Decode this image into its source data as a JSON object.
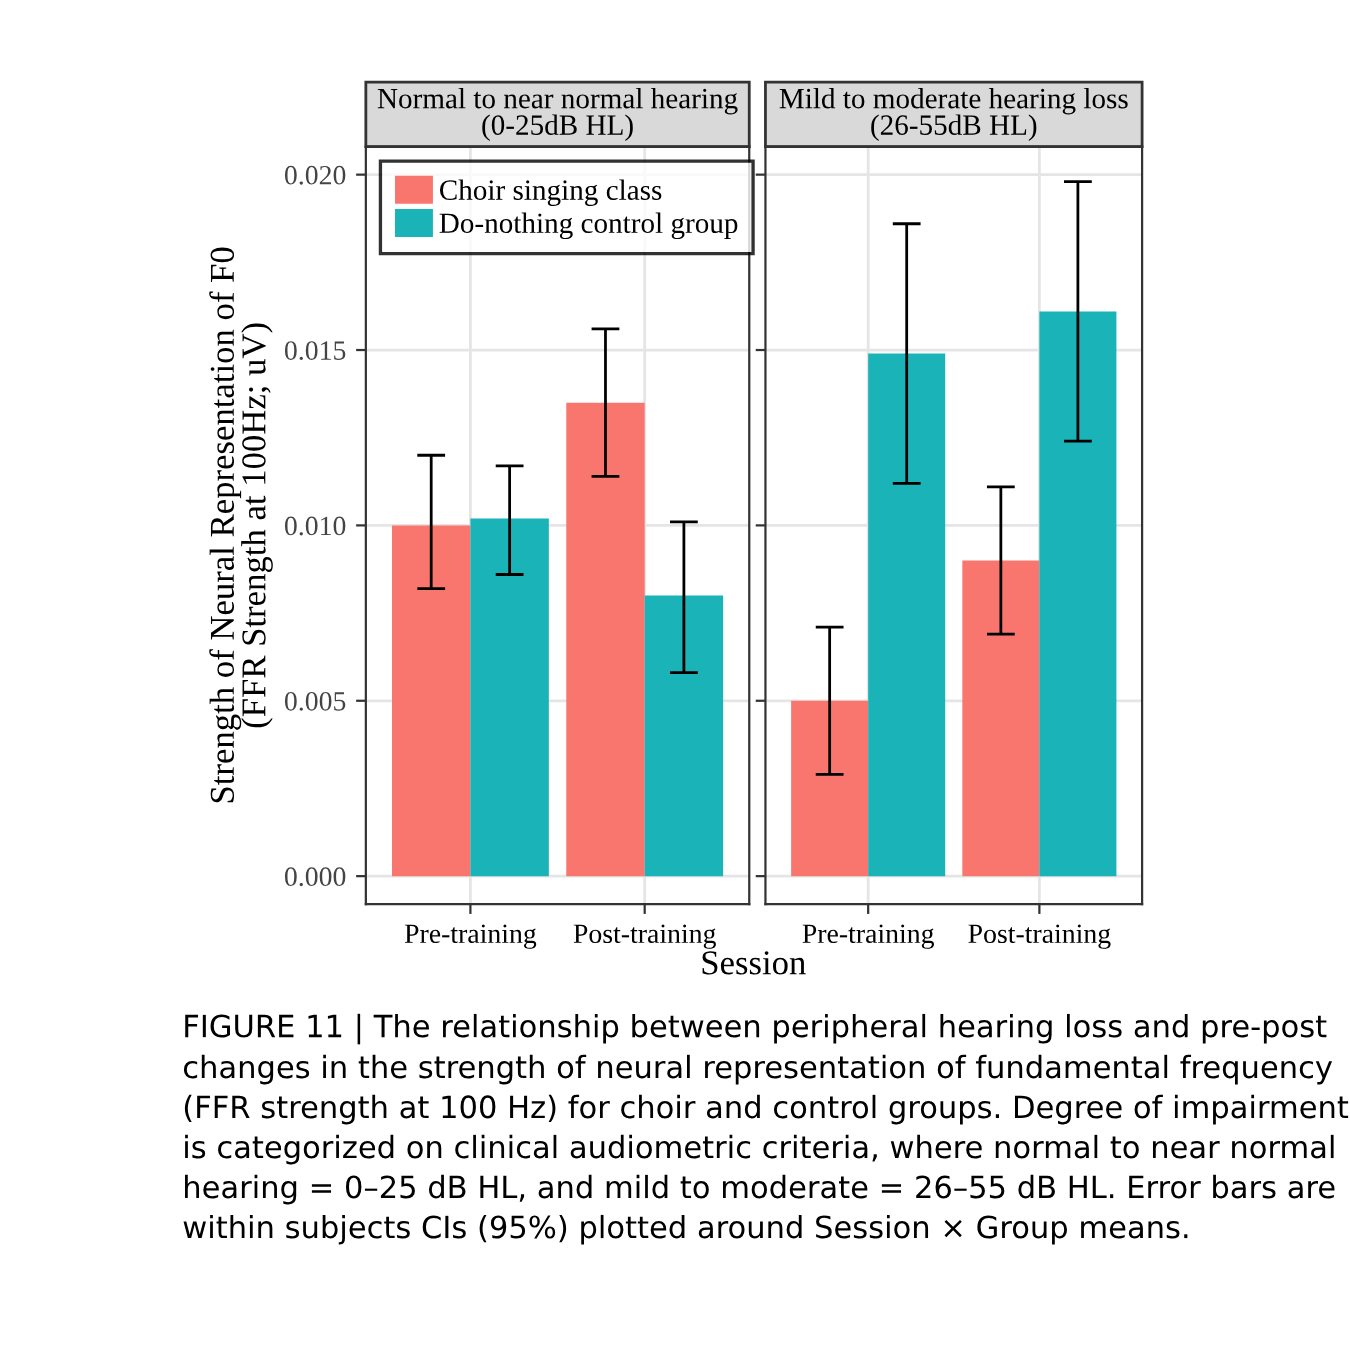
{
  "chart_data": [
    {
      "type": "bar",
      "title": "Normal to near normal hearing\n(0-25dB HL)",
      "xlabel": "Session",
      "ylabel": "Strength of Neural Representation of F0\n(FFR Strength at 100Hz; uV)",
      "categories": [
        "Pre-training",
        "Post-training"
      ],
      "series": [
        {
          "name": "Choir singing class",
          "color": "#f8766d",
          "values": [
            0.01,
            0.0135
          ],
          "errors": [
            [
              0.0082,
              0.012
            ],
            [
              0.0114,
              0.0156
            ]
          ]
        },
        {
          "name": "Do-nothing control group",
          "color": "#1ab3b8",
          "values": [
            0.0102,
            0.008
          ],
          "errors": [
            [
              0.0086,
              0.0117
            ],
            [
              0.0058,
              0.0101
            ]
          ]
        }
      ],
      "ylim": [
        -0.0008,
        0.0208
      ],
      "yticks": [
        {
          "value": 0,
          "label": "0.000"
        },
        {
          "value": 0.005,
          "label": "0.005"
        },
        {
          "value": 0.01,
          "label": "0.010"
        },
        {
          "value": 0.015,
          "label": "0.015"
        },
        {
          "value": 0.02,
          "label": "0.020"
        }
      ],
      "grid": true,
      "legend": "top left",
      "annotations": [
        "FIGURE 11 | The relationship between peripheral hearing loss and pre-post changes in the strength of neural representation of fundamental frequency (FFR strength at 100 Hz) for choir and control groups. Degree of impairment is categorized on clinical audiometric criteria, where normal to near normal hearing = 0–25 dB HL, and mild to moderate = 26–55 dB HL. Error bars are within subjects CIs (95%) plotted around Session × Group means."
      ]
    },
    {
      "type": "bar",
      "title": "Mild to moderate hearing loss\n(26-55dB HL)",
      "categories": [
        "Pre-training",
        "Post-training"
      ],
      "series": [
        {
          "color": "#f8766d",
          "values": [
            0.005,
            0.009
          ],
          "errors": [
            [
              0.0029,
              0.0071
            ],
            [
              0.0069,
              0.0111
            ]
          ]
        },
        {
          "color": "#1ab3b8",
          "values": [
            0.0149,
            0.0161
          ],
          "errors": [
            [
              0.0112,
              0.0186
            ],
            [
              0.0124,
              0.0198
            ]
          ]
        }
      ],
      "ylim": [
        -0.0008,
        0.0208
      ],
      "yticks": [
        {
          "value": 0,
          "label": null
        },
        {
          "value": 0.005,
          "label": null
        },
        {
          "value": 0.01,
          "label": null
        },
        {
          "value": 0.015,
          "label": null
        },
        {
          "value": 0.02,
          "label": null
        }
      ],
      "grid": true,
      "tick_labels": "x"
    }
  ]
}
